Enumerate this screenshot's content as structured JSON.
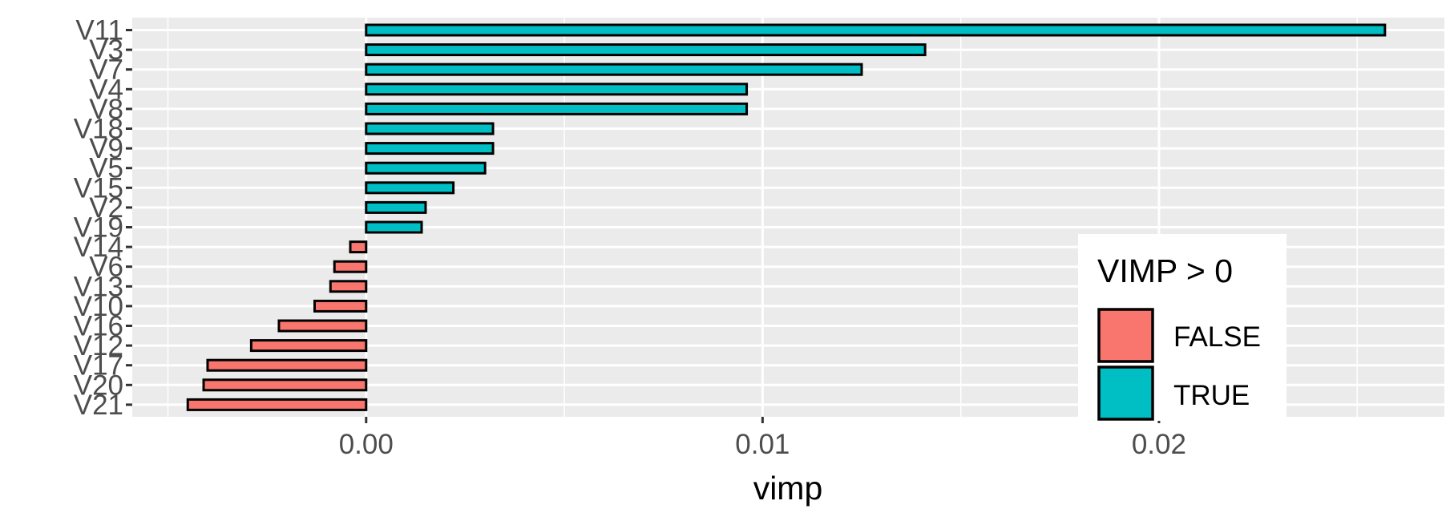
{
  "chart_data": {
    "type": "bar",
    "orientation": "horizontal",
    "xlabel": "vimp",
    "ylabel": "",
    "xlim": [
      -0.0059,
      0.0272
    ],
    "x_ticks": [
      {
        "value": 0.0,
        "label": "0.00"
      },
      {
        "value": 0.01,
        "label": "0.01"
      },
      {
        "value": 0.02,
        "label": "0.02"
      }
    ],
    "grid": true,
    "legend": {
      "title": "VIMP > 0",
      "position": "bottom-right, inside plot",
      "entries": [
        {
          "label": "FALSE",
          "color": "#F8766D"
        },
        {
          "label": "TRUE",
          "color": "#00BFC4"
        }
      ]
    },
    "categories": [
      "V11",
      "V3",
      "V7",
      "V4",
      "V8",
      "V18",
      "V9",
      "V5",
      "V15",
      "V2",
      "V19",
      "V14",
      "V6",
      "V13",
      "V10",
      "V16",
      "V12",
      "V17",
      "V20",
      "V21"
    ],
    "values": [
      0.0257,
      0.0141,
      0.0125,
      0.0096,
      0.0096,
      0.0032,
      0.0032,
      0.003,
      0.0022,
      0.0015,
      0.0014,
      -0.0004,
      -0.0008,
      -0.0009,
      -0.0013,
      -0.0022,
      -0.0029,
      -0.004,
      -0.0041,
      -0.0045
    ],
    "positive": [
      true,
      true,
      true,
      true,
      true,
      true,
      true,
      true,
      true,
      true,
      true,
      false,
      false,
      false,
      false,
      false,
      false,
      false,
      false,
      false
    ]
  }
}
